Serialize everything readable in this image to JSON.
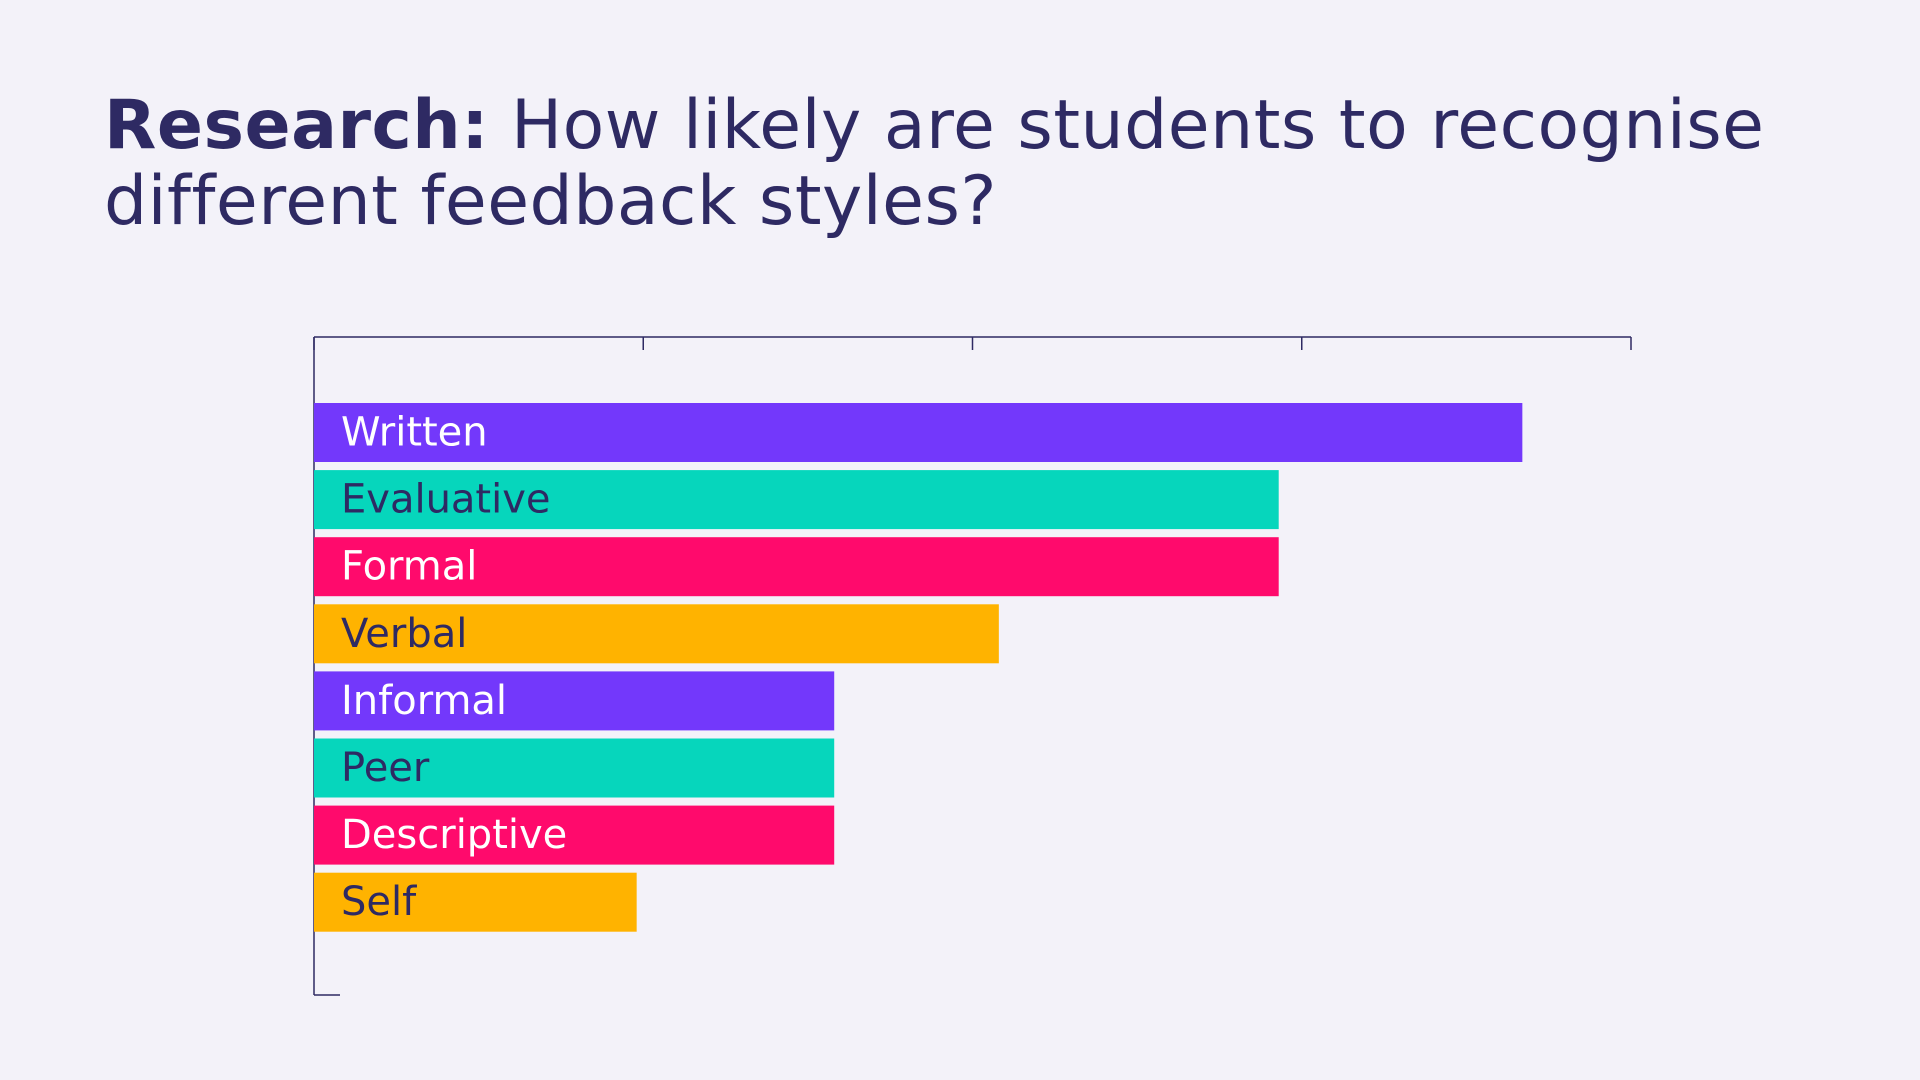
{
  "title": {
    "lead": "Research:",
    "text": "How likely are students to recognise different feedback styles?"
  },
  "colors": {
    "background": "#f3f2f9",
    "title_text": "#2e2a63",
    "axis": "#2e2a63",
    "purple": "#7338fb",
    "teal": "#06d6bc",
    "pink": "#ff0a6c",
    "amber": "#ffb300",
    "label_on_dark": "#ffffff",
    "label_on_light": "#2e2a63"
  },
  "chart_data": {
    "type": "bar",
    "orientation": "horizontal",
    "categories": [
      "Written",
      "Evaluative",
      "Formal",
      "Verbal",
      "Informal",
      "Peer",
      "Descriptive",
      "Self"
    ],
    "values": [
      3.67,
      2.93,
      2.93,
      2.08,
      1.58,
      1.58,
      1.58,
      0.98
    ],
    "bar_colors": [
      "#7338fb",
      "#06d6bc",
      "#ff0a6c",
      "#ffb300",
      "#7338fb",
      "#06d6bc",
      "#ff0a6c",
      "#ffb300"
    ],
    "label_colors": [
      "#ffffff",
      "#2e2a63",
      "#ffffff",
      "#2e2a63",
      "#ffffff",
      "#2e2a63",
      "#ffffff",
      "#2e2a63"
    ],
    "xlim": [
      0,
      4
    ],
    "x_ticks": [
      0,
      1,
      2,
      3,
      4
    ],
    "tick_labels_shown": false,
    "xlabel": "",
    "ylabel": "",
    "grid": false,
    "legend": "none"
  }
}
